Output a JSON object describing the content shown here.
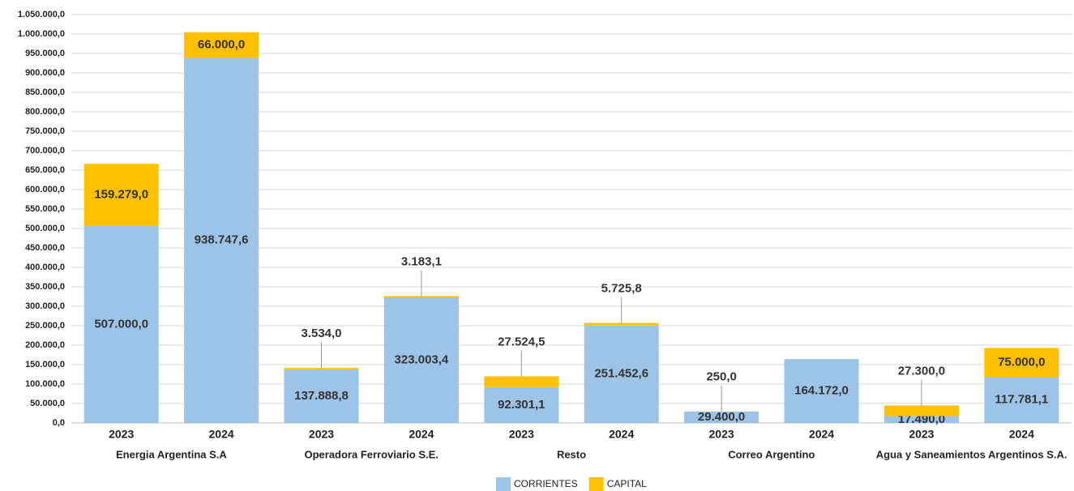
{
  "chart_data": {
    "type": "stacked_bar",
    "categories": [
      "2023",
      "2024",
      "2023",
      "2024",
      "2023",
      "2024",
      "2023",
      "2024",
      "2023",
      "2024"
    ],
    "groups": [
      "Energia Argentina S.A",
      "Operadora Ferroviario S.E.",
      "Resto",
      "Correo Argentino",
      "Agua y Saneamientos Argentinos S.A."
    ],
    "series": [
      {
        "name": "CORRIENTES",
        "color": "#9dc3e6",
        "values": [
          507000,
          938747.6,
          137888.8,
          323003.4,
          92301.1,
          251452.6,
          29400,
          164172,
          17490,
          117781.1
        ],
        "value_labels": [
          "507.000,0",
          "938.747,6",
          "137.888,8",
          "323.003,4",
          "92.301,1",
          "251.452,6",
          "29.400,0",
          "164.172,0",
          "17.490,0",
          "117.781,1"
        ]
      },
      {
        "name": "CAPITAL",
        "color": "#ffc000",
        "values": [
          159279,
          66000,
          3534,
          3183.1,
          27524.5,
          5725.8,
          250,
          null,
          27300,
          75000
        ],
        "value_labels": [
          "159.279,0",
          "66.000,0",
          "3.534,0",
          "3.183,1",
          "27.524,5",
          "5.725,8",
          "250,0",
          null,
          "27.300,0",
          "75.000,0"
        ]
      }
    ],
    "ylim": [
      0,
      1050000
    ],
    "yticks": [
      {
        "value": 0,
        "label": "0,0"
      },
      {
        "value": 50000,
        "label": "50.000,0"
      },
      {
        "value": 100000,
        "label": "100.000,0"
      },
      {
        "value": 150000,
        "label": "150.000,0"
      },
      {
        "value": 200000,
        "label": "200.000,0"
      },
      {
        "value": 250000,
        "label": "250.000,0"
      },
      {
        "value": 300000,
        "label": "300.000,0"
      },
      {
        "value": 350000,
        "label": "350.000,0"
      },
      {
        "value": 400000,
        "label": "400.000,0"
      },
      {
        "value": 450000,
        "label": "450.000,0"
      },
      {
        "value": 500000,
        "label": "500.000,0"
      },
      {
        "value": 550000,
        "label": "550.000,0"
      },
      {
        "value": 600000,
        "label": "600.000,0"
      },
      {
        "value": 650000,
        "label": "650.000,0"
      },
      {
        "value": 700000,
        "label": "700.000,0"
      },
      {
        "value": 750000,
        "label": "750.000,0"
      },
      {
        "value": 800000,
        "label": "800.000,0"
      },
      {
        "value": 850000,
        "label": "850.000,0"
      },
      {
        "value": 900000,
        "label": "900.000,0"
      },
      {
        "value": 950000,
        "label": "950.000,0"
      },
      {
        "value": 1000000,
        "label": "1.000.000,0"
      },
      {
        "value": 1050000,
        "label": "1.050.000,0"
      }
    ],
    "grid": true,
    "legend": "bottom"
  }
}
